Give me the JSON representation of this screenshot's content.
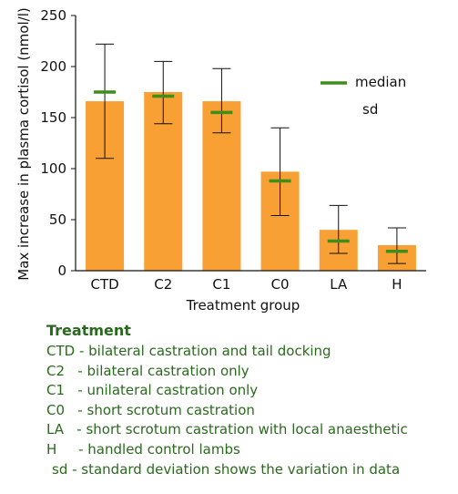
{
  "chart_data": {
    "type": "bar",
    "categories": [
      "CTD",
      "C2",
      "C1",
      "C0",
      "LA",
      "H"
    ],
    "series": [
      {
        "values": [
          166,
          175,
          166,
          97,
          40,
          25
        ],
        "sd_low": [
          110,
          144,
          135,
          54,
          17,
          7
        ],
        "sd_high": [
          222,
          205,
          198,
          140,
          64,
          42
        ],
        "median": [
          175,
          171,
          155,
          88,
          29,
          19
        ]
      }
    ],
    "xlabel": "Treatment group",
    "ylabel": "Max increase in plasma cortisol (nmol/l)",
    "ylim": [
      0,
      250
    ],
    "yticks": [
      0,
      50,
      100,
      150,
      200,
      250
    ],
    "legend": {
      "median_label": "median",
      "sd_label": "sd",
      "placement": "top-right"
    },
    "grid": false,
    "colors": {
      "bar": "#f9a034",
      "median": "#3e8e1a",
      "error": "#111111"
    }
  },
  "notes": {
    "title": "Treatment",
    "lines": [
      "CTD - bilateral castration and tail docking",
      "C2   - bilateral castration only",
      "C1   - unilateral castration only",
      "C0   - short scrotum castration",
      "LA   - short scrotum castration with local anaesthetic",
      "H     - handled control lambs",
      "sd - standard deviation shows the variation in data"
    ],
    "color": "#2a6a1e"
  }
}
